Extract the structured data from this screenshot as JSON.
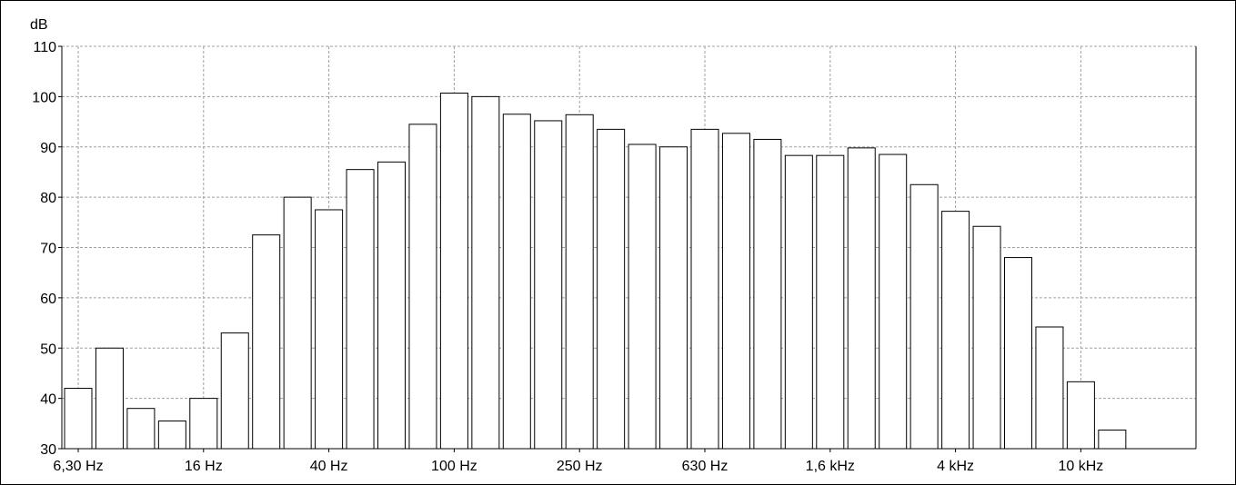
{
  "chart_data": {
    "type": "bar",
    "ylabel": "dB",
    "ylim": [
      30,
      110
    ],
    "yticks": [
      30,
      40,
      50,
      60,
      70,
      80,
      90,
      100,
      110
    ],
    "xtick_labels": [
      {
        "label": "6,30 Hz",
        "band_index": 0
      },
      {
        "label": "16 Hz",
        "band_index": 4
      },
      {
        "label": "40 Hz",
        "band_index": 8
      },
      {
        "label": "100 Hz",
        "band_index": 12
      },
      {
        "label": "250 Hz",
        "band_index": 16
      },
      {
        "label": "630 Hz",
        "band_index": 20
      },
      {
        "label": "1,6 kHz",
        "band_index": 24
      },
      {
        "label": "4 kHz",
        "band_index": 28
      },
      {
        "label": "10 kHz",
        "band_index": 32
      }
    ],
    "values": [
      42,
      50,
      38,
      35.5,
      40,
      53,
      72.5,
      80,
      77.5,
      85.5,
      87,
      94.5,
      100.7,
      100,
      96.5,
      95.2,
      96.4,
      93.5,
      90.5,
      90,
      93.5,
      92.7,
      91.5,
      88.3,
      88.3,
      89.8,
      88.5,
      82.5,
      77.2,
      74.2,
      68,
      54.2,
      43.3,
      33.7
    ],
    "grid": true,
    "bar_fill": "#ffffff",
    "bar_stroke": "#000000",
    "grid_color": "#a0a0a0"
  }
}
